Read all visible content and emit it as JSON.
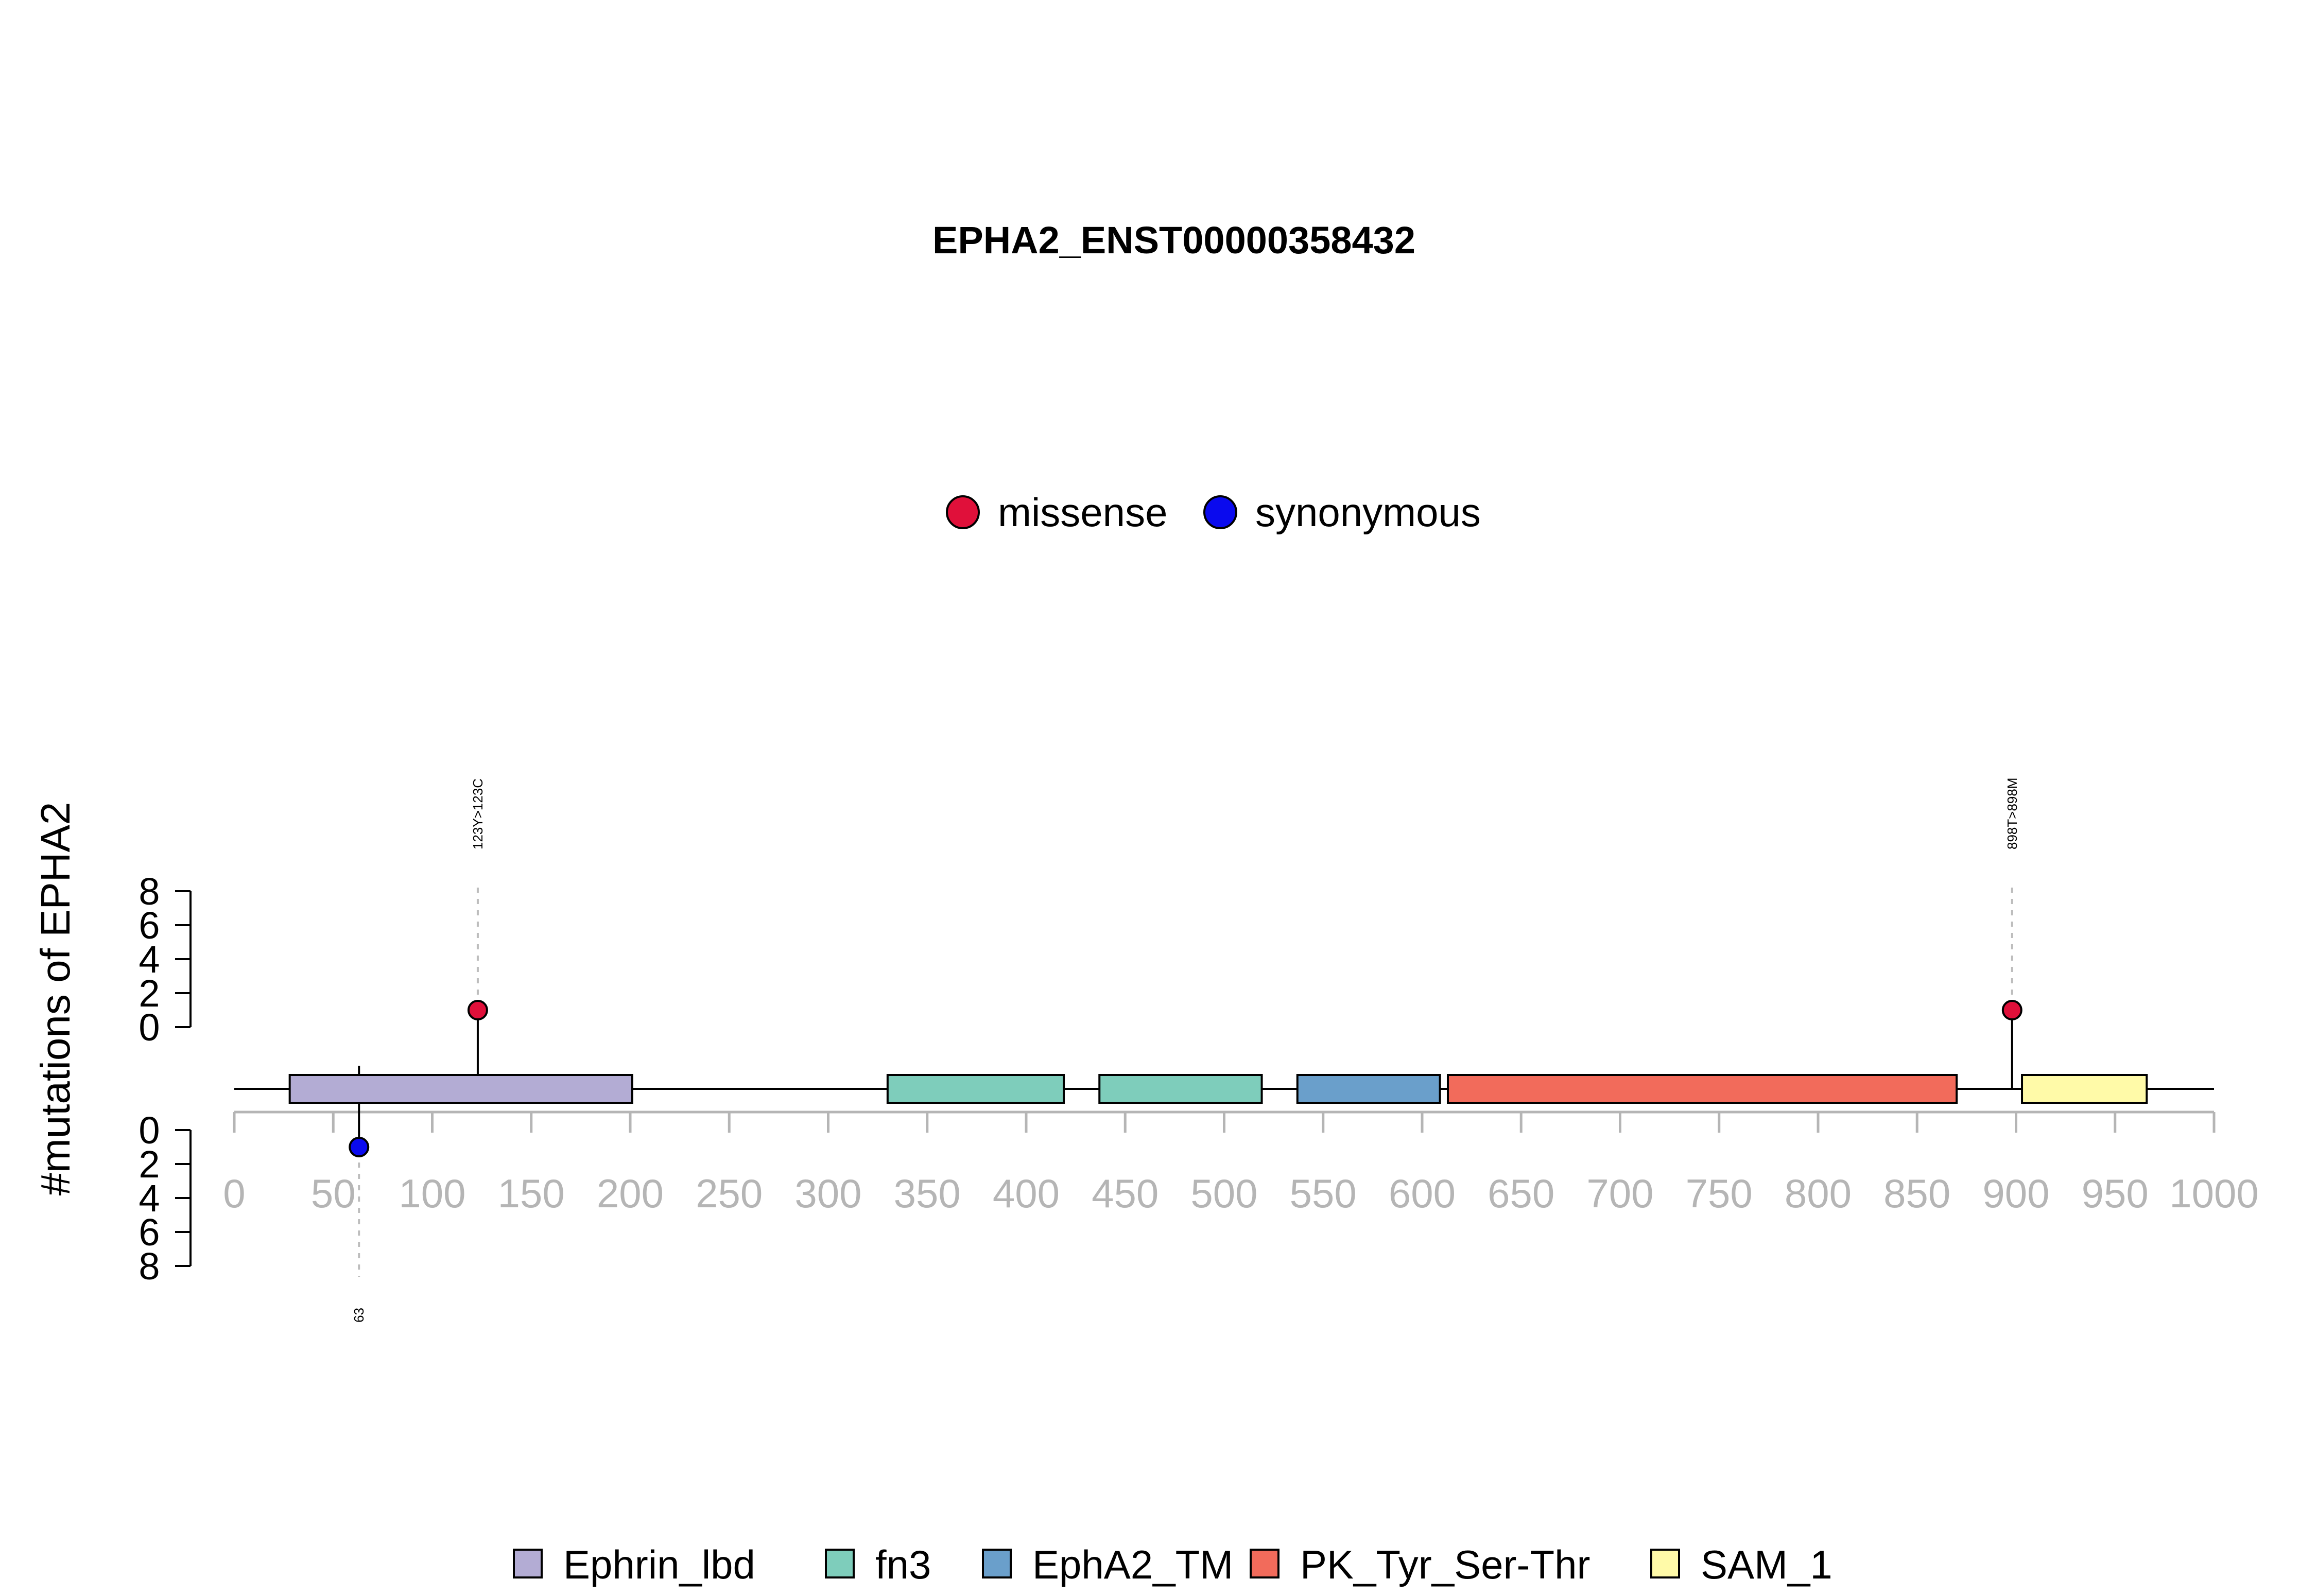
{
  "chart_data": {
    "type": "lollipop",
    "title": "EPHA2_ENST00000358432",
    "ylabel": "#mutations of EPHA2",
    "xlim": [
      0,
      1000
    ],
    "x_ticks": [
      0,
      50,
      100,
      150,
      200,
      250,
      300,
      350,
      400,
      450,
      500,
      550,
      600,
      650,
      700,
      750,
      800,
      850,
      900,
      950,
      1000
    ],
    "y_ticks": [
      0,
      2,
      4,
      6,
      8
    ],
    "ylim": [
      0,
      8
    ],
    "mutation_legend": [
      {
        "label": "missense",
        "color": "#e0103a"
      },
      {
        "label": "synonymous",
        "color": "#0a0aee"
      }
    ],
    "mutations": [
      {
        "position": 123,
        "count": 1,
        "type": "missense",
        "label": "123Y>123C",
        "side": "top"
      },
      {
        "position": 898,
        "count": 1,
        "type": "missense",
        "label": "898T>898M",
        "side": "top"
      },
      {
        "position": 63,
        "count": 1,
        "type": "synonymous",
        "label": "63",
        "side": "bottom"
      }
    ],
    "domains": [
      {
        "name": "Ephrin_lbd",
        "start": 28,
        "end": 201,
        "color": "#b3acd4"
      },
      {
        "name": "fn3",
        "start": 330,
        "end": 419,
        "color": "#7ecdbb"
      },
      {
        "name": "fn3",
        "start": 437,
        "end": 519,
        "color": "#7ecdbb"
      },
      {
        "name": "EphA2_TM",
        "start": 537,
        "end": 609,
        "color": "#6a9fcb"
      },
      {
        "name": "PK_Tyr_Ser-Thr",
        "start": 613,
        "end": 870,
        "color": "#f26b5b"
      },
      {
        "name": "SAM_1",
        "start": 903,
        "end": 966,
        "color": "#fffaa8"
      }
    ],
    "domain_legend": [
      {
        "label": "Ephrin_lbd",
        "color": "#b3acd4"
      },
      {
        "label": "fn3",
        "color": "#7ecdbb"
      },
      {
        "label": "EphA2_TM",
        "color": "#6a9fcb"
      },
      {
        "label": "PK_Tyr_Ser-Thr",
        "color": "#f26b5b"
      },
      {
        "label": "SAM_1",
        "color": "#fffaa8"
      }
    ]
  }
}
